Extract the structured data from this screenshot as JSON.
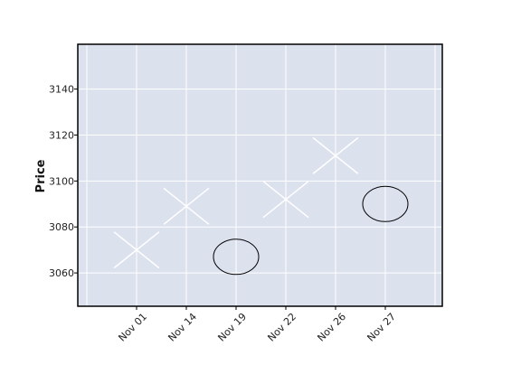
{
  "chart_data": {
    "type": "scatter",
    "title": "",
    "xlabel": "",
    "ylabel": "Price",
    "x_categories": [
      "Nov 01",
      "Nov 14",
      "Nov 19",
      "Nov 22",
      "Nov 26",
      "Nov 27"
    ],
    "y_ticks": [
      3060,
      3080,
      3100,
      3120,
      3140
    ],
    "ylim": [
      3045.5,
      3159.5
    ],
    "grid": true,
    "legend": "none",
    "series": [
      {
        "marker": "x",
        "color": "#ffffff",
        "points": [
          {
            "x": "Nov 01",
            "y": 3070
          },
          {
            "x": "Nov 14",
            "y": 3089
          },
          {
            "x": "Nov 22",
            "y": 3092
          },
          {
            "x": "Nov 26",
            "y": 3111
          }
        ]
      },
      {
        "marker": "circle",
        "color": "#000000",
        "points": [
          {
            "x": "Nov 19",
            "y": 3067
          },
          {
            "x": "Nov 27",
            "y": 3090
          }
        ]
      }
    ],
    "colors": {
      "plot_background": "#dce1ee",
      "grid": "#ffffff",
      "frame": "#000000"
    }
  }
}
